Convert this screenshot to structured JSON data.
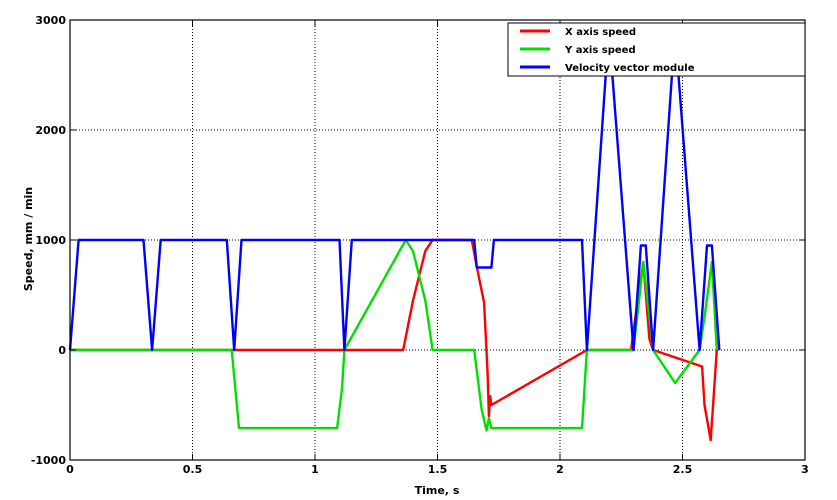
{
  "chart_data": {
    "type": "line",
    "title": "",
    "xlabel": "Time, s",
    "ylabel": "Speed, mm / min",
    "xlim": [
      0,
      3
    ],
    "ylim": [
      -1000,
      3000
    ],
    "xticks": [
      0,
      0.5,
      1,
      1.5,
      2,
      2.5,
      3
    ],
    "xtick_labels": [
      "0",
      "0.5",
      "1",
      "1.5",
      "2",
      "2.5",
      "3"
    ],
    "yticks": [
      -1000,
      0,
      1000,
      2000,
      3000
    ],
    "ytick_labels": [
      "-1000",
      "0",
      "1000",
      "2000",
      "3000"
    ],
    "grid": true,
    "legend_position": "top-right",
    "series": [
      {
        "name": "X axis speed",
        "color": "#ff0000",
        "x": [
          0,
          0.33,
          0.66,
          1.11,
          1.36,
          1.4,
          1.45,
          1.48,
          1.64,
          1.66,
          1.69,
          1.705,
          1.71,
          1.715,
          1.72,
          2.11,
          2.29,
          2.32,
          2.34,
          2.365,
          2.38,
          2.58,
          2.59,
          2.615,
          2.64
        ],
        "y": [
          0,
          0,
          0,
          0,
          0,
          450,
          900,
          1000,
          1000,
          760,
          430,
          -230,
          -600,
          -420,
          -500,
          0,
          0,
          500,
          800,
          100,
          0,
          -150,
          -500,
          -820,
          0
        ]
      },
      {
        "name": "Y axis speed",
        "color": "#00e000",
        "x": [
          0,
          0.33,
          0.66,
          0.69,
          1.09,
          1.11,
          1.12,
          1.37,
          1.4,
          1.45,
          1.48,
          1.65,
          1.68,
          1.7,
          1.71,
          1.72,
          2.09,
          2.11,
          2.3,
          2.34,
          2.38,
          2.47,
          2.57,
          2.59,
          2.62,
          2.64
        ],
        "y": [
          0,
          0,
          0,
          -710,
          -710,
          -350,
          0,
          1000,
          900,
          450,
          0,
          0,
          -540,
          -730,
          -620,
          -710,
          -710,
          0,
          0,
          800,
          0,
          -300,
          0,
          300,
          800,
          0
        ]
      },
      {
        "name": "Velocity vector module",
        "color": "#0000ff",
        "x": [
          0,
          0.035,
          0.3,
          0.335,
          0.37,
          0.64,
          0.67,
          0.7,
          1.1,
          1.12,
          1.15,
          1.65,
          1.66,
          1.72,
          1.73,
          2.09,
          2.11,
          2.19,
          2.2,
          2.21,
          2.3,
          2.33,
          2.35,
          2.38,
          2.46,
          2.47,
          2.48,
          2.57,
          2.6,
          2.62,
          2.65
        ],
        "y": [
          0,
          1000,
          1000,
          0,
          1000,
          1000,
          0,
          1000,
          1000,
          0,
          1000,
          1000,
          750,
          750,
          1000,
          1000,
          0,
          2600,
          2700,
          2600,
          0,
          950,
          950,
          0,
          2600,
          2700,
          2600,
          0,
          950,
          950,
          0
        ]
      }
    ]
  }
}
